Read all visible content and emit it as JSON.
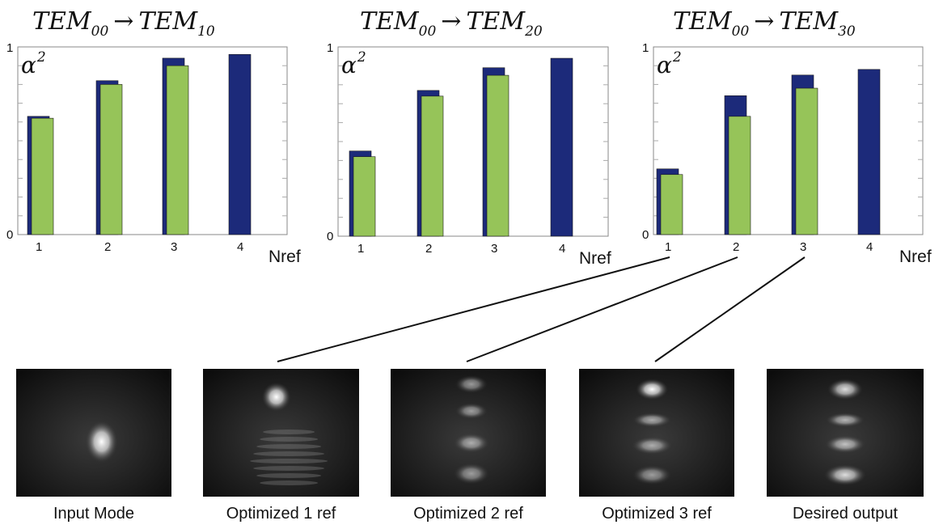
{
  "chart_data": [
    {
      "type": "bar",
      "title": "TEM00 → TEM10",
      "title_parts": {
        "base": "TEM",
        "from_sub": "00",
        "arrow": "→",
        "to_sub": "10"
      },
      "ylabel": "α",
      "ylabel_sup": "2",
      "xlabel": "Nref",
      "ylim": [
        0,
        1
      ],
      "yticks": [
        "0",
        "1"
      ],
      "categories": [
        "1",
        "2",
        "3",
        "4"
      ],
      "series": [
        {
          "color": "#1c2a7a",
          "values": [
            0.63,
            0.82,
            0.94,
            0.96
          ]
        },
        {
          "color": "#96c459",
          "values": [
            0.62,
            0.8,
            0.9,
            null
          ]
        }
      ]
    },
    {
      "type": "bar",
      "title": "TEM00 → TEM20",
      "title_parts": {
        "base": "TEM",
        "from_sub": "00",
        "arrow": "→",
        "to_sub": "20"
      },
      "ylabel": "α",
      "ylabel_sup": "2",
      "xlabel": "Nref",
      "ylim": [
        0,
        1
      ],
      "yticks": [
        "0",
        "1"
      ],
      "categories": [
        "1",
        "2",
        "3",
        "4"
      ],
      "series": [
        {
          "color": "#1c2a7a",
          "values": [
            0.45,
            0.77,
            0.89,
            0.94
          ]
        },
        {
          "color": "#96c459",
          "values": [
            0.42,
            0.74,
            0.85,
            null
          ]
        }
      ]
    },
    {
      "type": "bar",
      "title": "TEM00 → TEM30",
      "title_parts": {
        "base": "TEM",
        "from_sub": "00",
        "arrow": "→",
        "to_sub": "30"
      },
      "ylabel": "α",
      "ylabel_sup": "2",
      "xlabel": "Nref",
      "ylim": [
        0,
        1
      ],
      "yticks": [
        "0",
        "1"
      ],
      "categories": [
        "1",
        "2",
        "3",
        "4"
      ],
      "series": [
        {
          "color": "#1c2a7a",
          "values": [
            0.35,
            0.74,
            0.85,
            0.88
          ]
        },
        {
          "color": "#96c459",
          "values": [
            0.32,
            0.63,
            0.78,
            null
          ]
        }
      ]
    }
  ],
  "images": [
    {
      "label": "Input Mode",
      "lobes": 1
    },
    {
      "label": "Optimized 1 ref",
      "lobes": 1
    },
    {
      "label": "Optimized 2 ref",
      "lobes": 4
    },
    {
      "label": "Optimized 3 ref",
      "lobes": 4
    },
    {
      "label": "Desired output",
      "lobes": 4
    }
  ],
  "connectors": [
    {
      "from_category": "1",
      "to_image": "Optimized 1 ref"
    },
    {
      "from_category": "2",
      "to_image": "Optimized 2 ref"
    },
    {
      "from_category": "3",
      "to_image": "Optimized 3 ref"
    }
  ]
}
